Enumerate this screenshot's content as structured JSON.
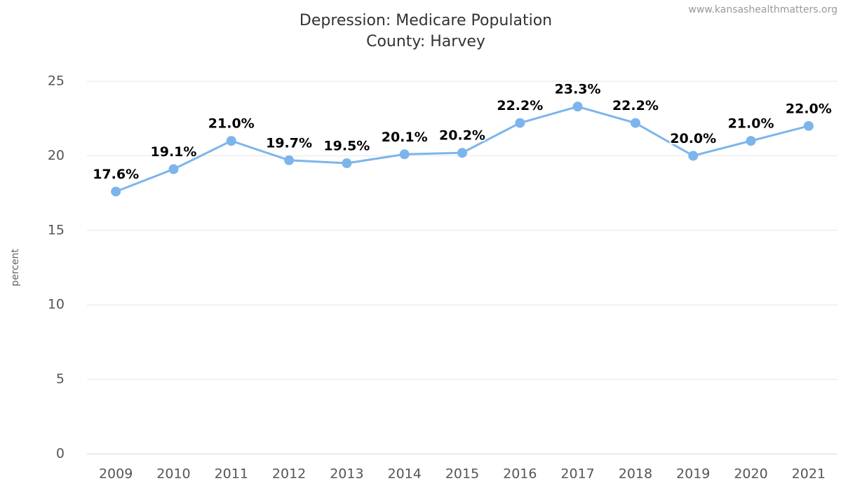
{
  "chart_data": {
    "type": "line",
    "title": "Depression: Medicare Population",
    "subtitle": "County: Harvey",
    "credit": "www.kansashealthmatters.org",
    "y_label": "percent",
    "categories": [
      "2009",
      "2010",
      "2011",
      "2012",
      "2013",
      "2014",
      "2015",
      "2016",
      "2017",
      "2018",
      "2019",
      "2020",
      "2021"
    ],
    "series": [
      {
        "name": "Harvey",
        "color": "#7cb5ec",
        "values": [
          17.6,
          19.1,
          21.0,
          19.7,
          19.5,
          20.1,
          20.2,
          22.2,
          23.3,
          22.2,
          20.0,
          21.0,
          22.0
        ],
        "value_labels": [
          "17.6%",
          "19.1%",
          "21.0%",
          "19.7%",
          "19.5%",
          "20.1%",
          "20.2%",
          "22.2%",
          "23.3%",
          "22.2%",
          "20.0%",
          "21.0%",
          "22.0%"
        ]
      }
    ],
    "ylim": [
      0,
      25
    ],
    "yticks": [
      0,
      5,
      10,
      15,
      20,
      25
    ],
    "grid": true
  }
}
